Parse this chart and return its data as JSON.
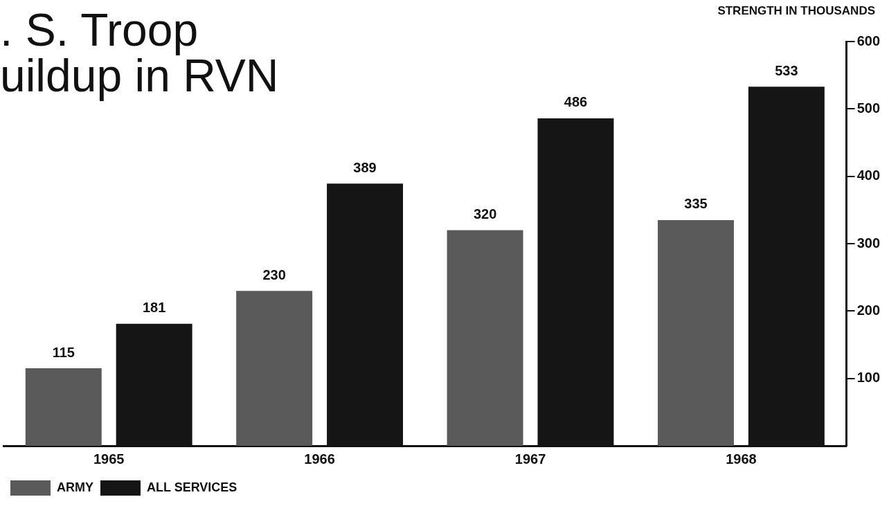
{
  "chart_data": {
    "type": "bar",
    "title": ". S. Troop\nuildup in RVN",
    "ylabel": "STRENGTH IN THOUSANDS",
    "categories": [
      "1965",
      "1966",
      "1967",
      "1968"
    ],
    "series": [
      {
        "name": "ARMY",
        "color": "#5a5a5a",
        "values": [
          115,
          230,
          320,
          335
        ]
      },
      {
        "name": "ALL SERVICES",
        "color": "#151515",
        "values": [
          181,
          389,
          486,
          533
        ]
      }
    ],
    "ylim": [
      0,
      600
    ],
    "yticks": [
      100,
      200,
      300,
      400,
      500,
      600
    ],
    "grid": false,
    "legend": "bottom left",
    "data_labels": true
  }
}
